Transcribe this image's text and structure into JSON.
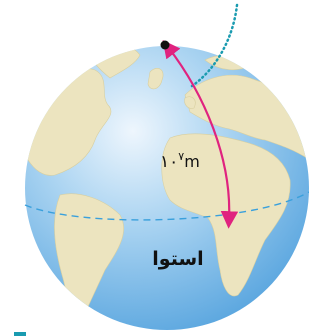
{
  "labels": {
    "distance": {
      "base": "۱۰",
      "exponent": "۷",
      "unit": "m"
    },
    "equator": "استوا"
  }
}
